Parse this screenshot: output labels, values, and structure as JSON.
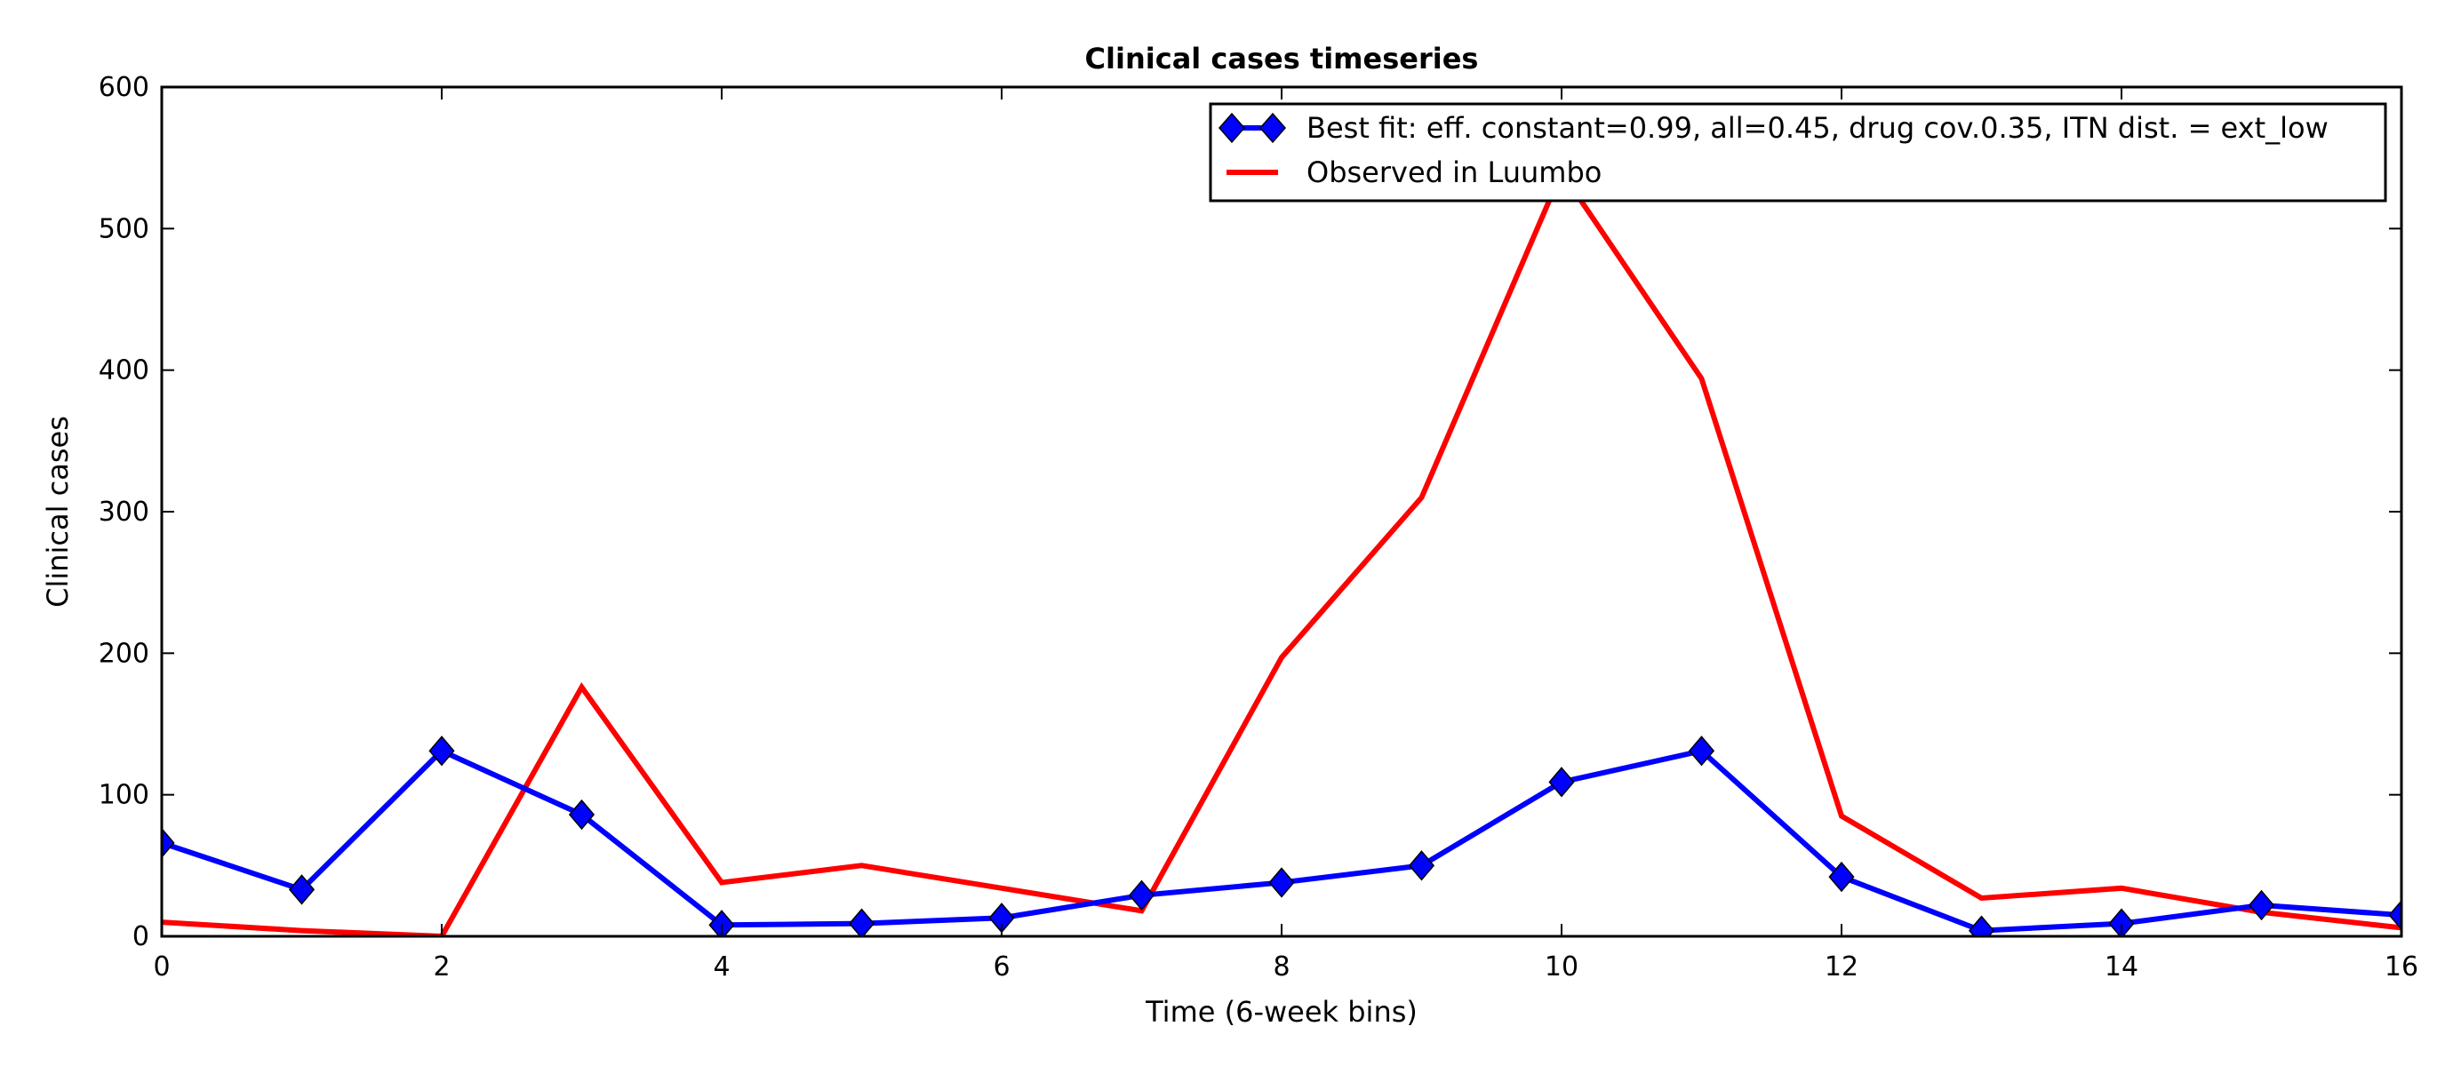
{
  "chart_data": {
    "type": "line",
    "title": "Clinical cases timeseries",
    "xlabel": "Time (6-week bins)",
    "ylabel": "Clinical cases",
    "xlim": [
      0,
      16
    ],
    "ylim": [
      0,
      600
    ],
    "xticks": [
      "0",
      "2",
      "4",
      "6",
      "8",
      "10",
      "12",
      "14",
      "16"
    ],
    "yticks": [
      "0",
      "100",
      "200",
      "300",
      "400",
      "500",
      "600"
    ],
    "grid": false,
    "legend_position": "top-right",
    "x": [
      0,
      1,
      2,
      3,
      4,
      5,
      6,
      7,
      8,
      9,
      10,
      11,
      12,
      13,
      14,
      15,
      16
    ],
    "series": [
      {
        "name": "Best fit: eff. constant=0.99, all=0.45, drug cov.0.35, ITN dist. = ext_low",
        "color": "#0000ff",
        "marker": "diamond",
        "values": [
          66,
          33,
          131,
          86,
          8,
          9,
          13,
          29,
          38,
          50,
          109,
          131,
          42,
          4,
          9,
          22,
          15
        ]
      },
      {
        "name": "Observed in Luumbo",
        "color": "#ff0000",
        "marker": "none",
        "values": [
          10,
          4,
          0,
          176,
          38,
          50,
          34,
          18,
          197,
          310,
          540,
          394,
          85,
          27,
          34,
          17,
          6
        ]
      }
    ]
  }
}
